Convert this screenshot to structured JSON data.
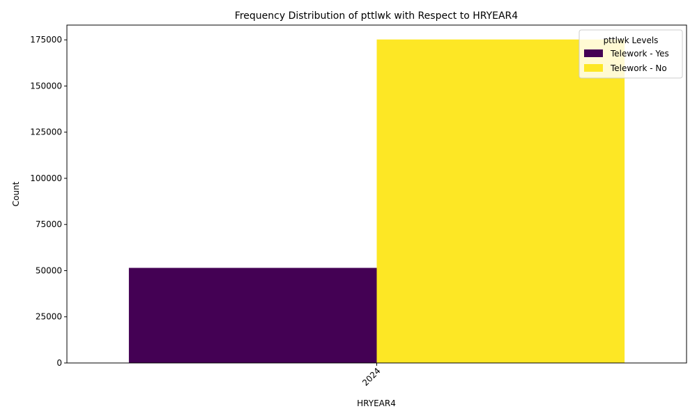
{
  "chart_data": {
    "type": "bar",
    "title": "Frequency Distribution of pttlwk with Respect to HRYEAR4",
    "xlabel": "HRYEAR4",
    "ylabel": "Count",
    "categories": [
      "2024"
    ],
    "series": [
      {
        "name": "Telework - Yes",
        "values": [
          51500
        ],
        "color": "#440154"
      },
      {
        "name": "Telework - No",
        "values": [
          175200
        ],
        "color": "#fde725"
      }
    ],
    "ylim": [
      0,
      183000
    ],
    "yticks": [
      0,
      25000,
      50000,
      75000,
      100000,
      125000,
      150000,
      175000
    ],
    "grid": false,
    "legend": {
      "title": "pttlwk Levels",
      "position": "top-right"
    }
  }
}
